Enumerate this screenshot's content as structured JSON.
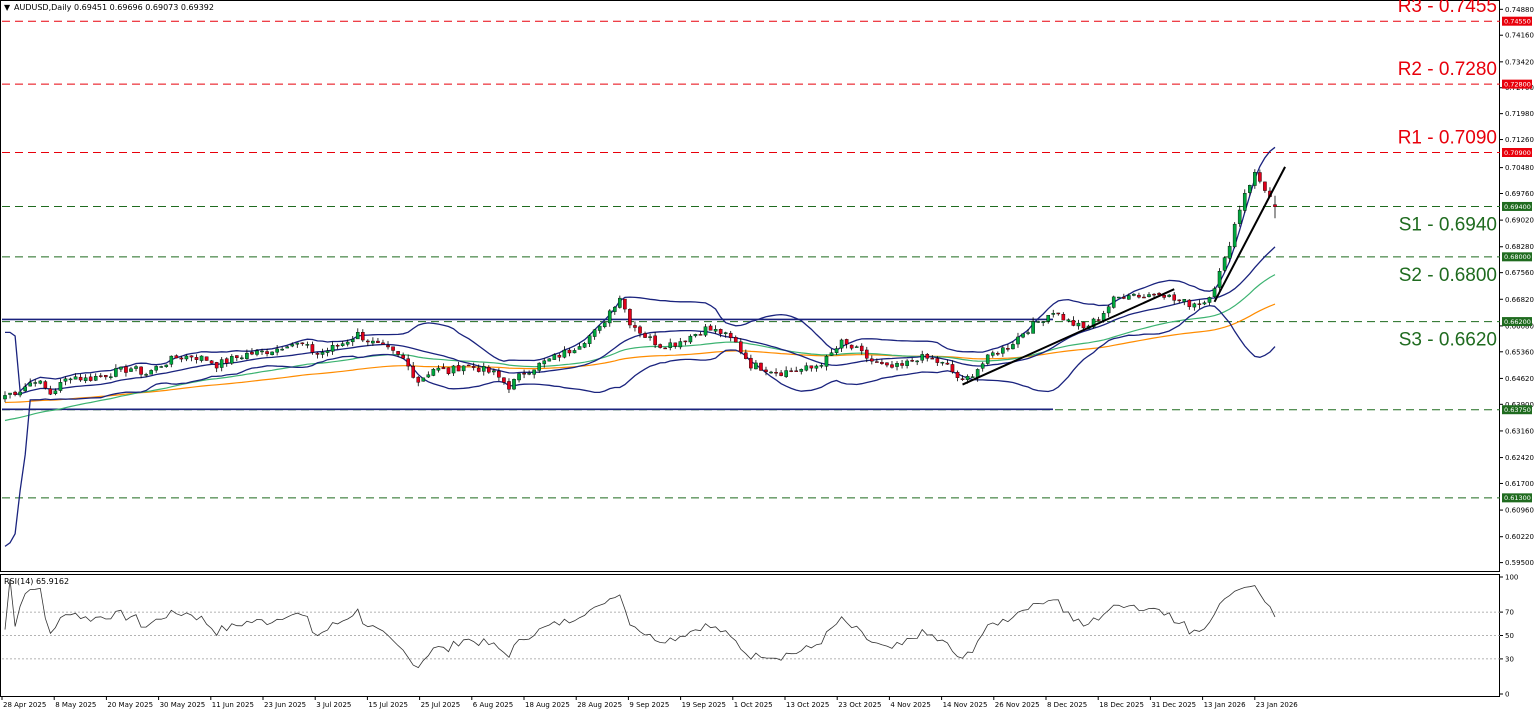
{
  "chart_data": [
    {
      "type": "candlestick",
      "title": "AUDUSD,Daily",
      "ohlc_text": "0.69451 0.69696 0.69073 0.69392",
      "ylim": [
        0.5935,
        0.75
      ],
      "price_ticks": [
        "0.74880",
        "0.74160",
        "0.73420",
        "0.72700",
        "0.71980",
        "0.71260",
        "0.70480",
        "0.69760",
        "0.69020",
        "0.68280",
        "0.67560",
        "0.66820",
        "0.66080",
        "0.65360",
        "0.64620",
        "0.63900",
        "0.63160",
        "0.62420",
        "0.61700",
        "0.60960",
        "0.60220",
        "0.59500"
      ],
      "x_dates": [
        "28 Apr 2025",
        "8 May 2025",
        "20 May 2025",
        "30 May 2025",
        "11 Jun 2025",
        "23 Jun 2025",
        "3 Jul 2025",
        "15 Jul 2025",
        "25 Jul 2025",
        "6 Aug 2025",
        "18 Aug 2025",
        "28 Aug 2025",
        "9 Sep 2025",
        "19 Sep 2025",
        "1 Oct 2025",
        "13 Oct 2025",
        "23 Oct 2025",
        "4 Nov 2025",
        "14 Nov 2025",
        "26 Nov 2025",
        "8 Dec 2025",
        "18 Dec 2025",
        "31 Dec 2025",
        "13 Jan 2026",
        "23 Jan 2026"
      ],
      "levels": [
        {
          "label": "R3 - 0.7455",
          "tag": "0.74550",
          "value": 0.7455,
          "color": "#e8000b",
          "kind": "resistance"
        },
        {
          "label": "R2 - 0.7280",
          "tag": "0.72800",
          "value": 0.728,
          "color": "#e8000b",
          "kind": "resistance"
        },
        {
          "label": "R1 - 0.7090",
          "tag": "0.70900",
          "value": 0.709,
          "color": "#e8000b",
          "kind": "resistance"
        },
        {
          "label": "S1 - 0.6940",
          "tag": "0.69400",
          "value": 0.694,
          "color": "#1f6b1f",
          "kind": "support"
        },
        {
          "label": "S2 - 0.6800",
          "tag": "0.68000",
          "value": 0.68,
          "color": "#1f6b1f",
          "kind": "support"
        },
        {
          "label": "S3 - 0.6620",
          "tag": "0.66200",
          "value": 0.662,
          "color": "#1f6b1f",
          "kind": "support"
        },
        {
          "label": "",
          "tag": "0.63750",
          "value": 0.6375,
          "color": "#1f6b1f",
          "kind": "support"
        },
        {
          "label": "",
          "tag": "0.61300",
          "value": 0.613,
          "color": "#1f6b1f",
          "kind": "support"
        }
      ],
      "close_path": [
        [
          0,
          0.6415
        ],
        [
          3,
          0.643
        ],
        [
          6,
          0.646
        ],
        [
          9,
          0.642
        ],
        [
          11,
          0.6445
        ],
        [
          13,
          0.647
        ],
        [
          16,
          0.646
        ],
        [
          19,
          0.647
        ],
        [
          22,
          0.648
        ],
        [
          25,
          0.649
        ],
        [
          28,
          0.6475
        ],
        [
          31,
          0.65
        ],
        [
          34,
          0.652
        ],
        [
          37,
          0.6525
        ],
        [
          40,
          0.6515
        ],
        [
          42,
          0.65
        ],
        [
          45,
          0.6515
        ],
        [
          48,
          0.653
        ],
        [
          51,
          0.6535
        ],
        [
          54,
          0.6545
        ],
        [
          56,
          0.656
        ],
        [
          59,
          0.6555
        ],
        [
          62,
          0.653
        ],
        [
          64,
          0.654
        ],
        [
          67,
          0.656
        ],
        [
          70,
          0.6585
        ],
        [
          73,
          0.656
        ],
        [
          76,
          0.654
        ],
        [
          79,
          0.6515
        ],
        [
          82,
          0.6455
        ],
        [
          85,
          0.649
        ],
        [
          88,
          0.648
        ],
        [
          91,
          0.65
        ],
        [
          94,
          0.649
        ],
        [
          97,
          0.6475
        ],
        [
          100,
          0.644
        ],
        [
          103,
          0.648
        ],
        [
          106,
          0.65
        ],
        [
          109,
          0.652
        ],
        [
          112,
          0.654
        ],
        [
          115,
          0.657
        ],
        [
          118,
          0.66
        ],
        [
          120,
          0.665
        ],
        [
          122,
          0.669
        ],
        [
          124,
          0.662
        ],
        [
          127,
          0.658
        ],
        [
          130,
          0.6555
        ],
        [
          133,
          0.656
        ],
        [
          136,
          0.658
        ],
        [
          139,
          0.66
        ],
        [
          142,
          0.659
        ],
        [
          145,
          0.656
        ],
        [
          148,
          0.65
        ],
        [
          151,
          0.649
        ],
        [
          154,
          0.648
        ],
        [
          157,
          0.6485
        ],
        [
          160,
          0.649
        ],
        [
          163,
          0.6515
        ],
        [
          166,
          0.656
        ],
        [
          169,
          0.654
        ],
        [
          172,
          0.651
        ],
        [
          175,
          0.649
        ],
        [
          178,
          0.6495
        ],
        [
          181,
          0.652
        ],
        [
          184,
          0.6515
        ],
        [
          187,
          0.6495
        ],
        [
          190,
          0.645
        ],
        [
          193,
          0.649
        ],
        [
          196,
          0.653
        ],
        [
          199,
          0.655
        ],
        [
          202,
          0.659
        ],
        [
          205,
          0.662
        ],
        [
          208,
          0.665
        ],
        [
          211,
          0.662
        ],
        [
          214,
          0.66
        ],
        [
          217,
          0.663
        ],
        [
          220,
          0.668
        ],
        [
          223,
          0.67
        ],
        [
          226,
          0.669
        ],
        [
          229,
          0.6705
        ],
        [
          232,
          0.668
        ],
        [
          235,
          0.667
        ],
        [
          238,
          0.6675
        ],
        [
          240,
          0.672
        ],
        [
          242,
          0.679
        ],
        [
          244,
          0.689
        ],
        [
          246,
          0.698
        ],
        [
          248,
          0.703
        ],
        [
          250,
          0.699
        ],
        [
          252,
          0.6939
        ]
      ],
      "rsi": {
        "title": "RSI(14) 65.9162",
        "period": 14,
        "value": 65.9162,
        "ylim": [
          0,
          100
        ],
        "ticks": [
          "100",
          "70",
          "50",
          "30",
          "0"
        ],
        "levels": [
          70,
          50,
          30
        ]
      }
    }
  ]
}
